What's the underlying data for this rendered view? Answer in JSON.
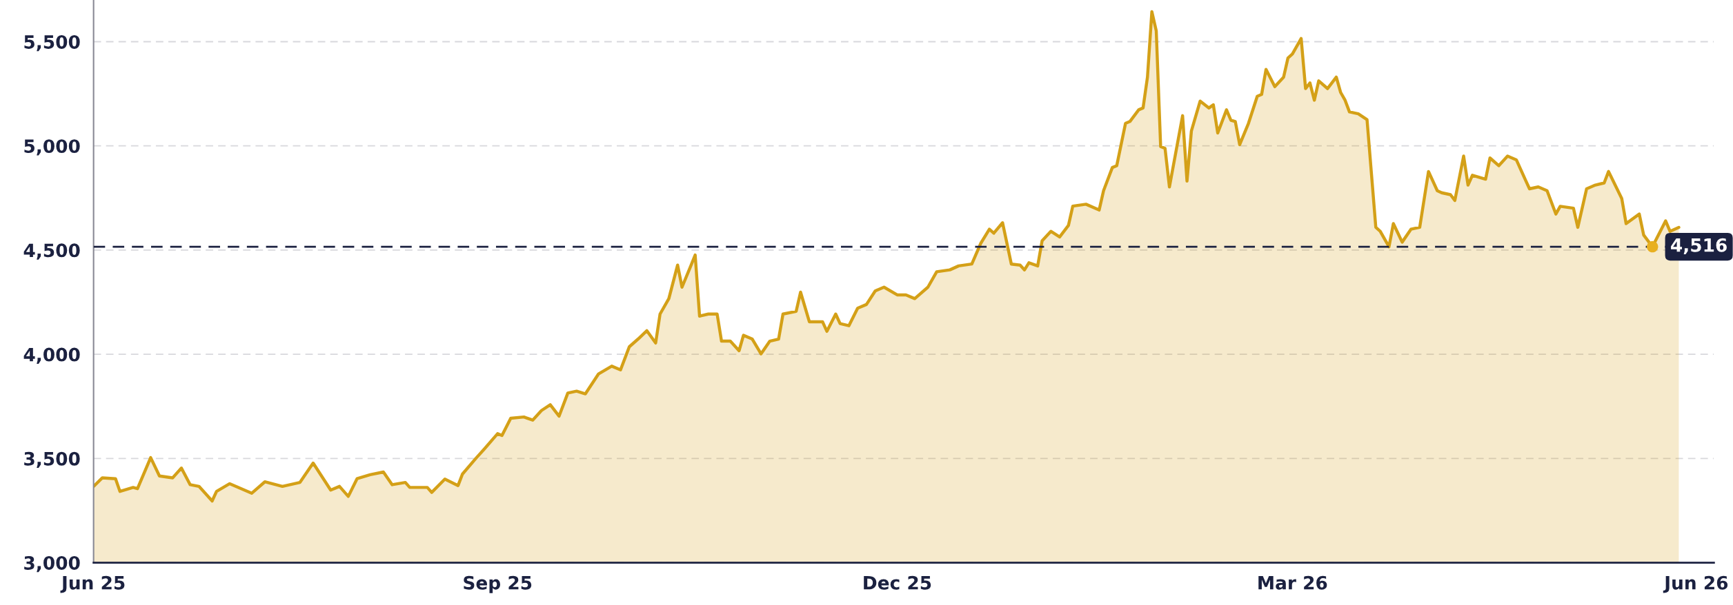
{
  "chart_data": {
    "type": "area",
    "x": [
      "2025-06-01",
      "2025-06-03",
      "2025-06-06",
      "2025-06-07",
      "2025-06-10",
      "2025-06-11",
      "2025-06-14",
      "2025-06-16",
      "2025-06-19",
      "2025-06-21",
      "2025-06-23",
      "2025-06-25",
      "2025-06-28",
      "2025-06-29",
      "2025-07-02",
      "2025-07-07",
      "2025-07-10",
      "2025-07-14",
      "2025-07-18",
      "2025-07-21",
      "2025-07-25",
      "2025-07-27",
      "2025-07-29",
      "2025-07-31",
      "2025-08-03",
      "2025-08-06",
      "2025-08-08",
      "2025-08-11",
      "2025-08-12",
      "2025-08-16",
      "2025-08-17",
      "2025-08-20",
      "2025-08-23",
      "2025-08-24",
      "2025-08-27",
      "2025-08-29",
      "2025-09-01",
      "2025-09-02",
      "2025-09-04",
      "2025-09-07",
      "2025-09-09",
      "2025-09-11",
      "2025-09-13",
      "2025-09-15",
      "2025-09-17",
      "2025-09-19",
      "2025-09-21",
      "2025-09-24",
      "2025-09-27",
      "2025-09-29",
      "2025-10-01",
      "2025-10-03",
      "2025-10-05",
      "2025-10-07",
      "2025-10-08",
      "2025-10-10",
      "2025-10-12",
      "2025-10-13",
      "2025-10-15",
      "2025-10-16",
      "2025-10-17",
      "2025-10-19",
      "2025-10-21",
      "2025-10-22",
      "2025-10-24",
      "2025-10-26",
      "2025-10-27",
      "2025-10-29",
      "2025-10-31",
      "2025-11-02",
      "2025-11-04",
      "2025-11-05",
      "2025-11-08",
      "2025-11-09",
      "2025-11-11",
      "2025-11-14",
      "2025-11-15",
      "2025-11-17",
      "2025-11-18",
      "2025-11-20",
      "2025-11-22",
      "2025-11-24",
      "2025-11-26",
      "2025-11-28",
      "2025-12-01",
      "2025-12-03",
      "2025-12-05",
      "2025-12-08",
      "2025-12-10",
      "2025-12-13",
      "2025-12-15",
      "2025-12-18",
      "2025-12-20",
      "2025-12-22",
      "2025-12-23",
      "2025-12-25",
      "2025-12-27",
      "2025-12-29",
      "2025-12-30",
      "2025-12-31",
      "2026-01-02",
      "2026-01-03",
      "2026-01-05",
      "2026-01-07",
      "2026-01-09",
      "2026-01-10",
      "2026-01-13",
      "2026-01-16",
      "2026-01-17",
      "2026-01-19",
      "2026-01-20",
      "2026-01-22",
      "2026-01-23",
      "2026-01-25",
      "2026-01-26",
      "2026-01-27",
      "2026-01-28",
      "2026-01-29",
      "2026-01-30",
      "2026-01-31",
      "2026-02-01",
      "2026-02-04",
      "2026-02-05",
      "2026-02-06",
      "2026-02-08",
      "2026-02-10",
      "2026-02-11",
      "2026-02-12",
      "2026-02-14",
      "2026-02-15",
      "2026-02-16",
      "2026-02-17",
      "2026-02-19",
      "2026-02-21",
      "2026-02-22",
      "2026-02-23",
      "2026-02-25",
      "2026-02-27",
      "2026-02-28",
      "2026-03-01",
      "2026-03-03",
      "2026-03-04",
      "2026-03-05",
      "2026-03-06",
      "2026-03-07",
      "2026-03-09",
      "2026-03-11",
      "2026-03-12",
      "2026-03-13",
      "2026-03-14",
      "2026-03-16",
      "2026-03-18",
      "2026-03-20",
      "2026-03-21",
      "2026-03-23",
      "2026-03-24",
      "2026-03-26",
      "2026-03-28",
      "2026-03-30",
      "2026-04-01",
      "2026-04-03",
      "2026-04-04",
      "2026-04-06",
      "2026-04-07",
      "2026-04-09",
      "2026-04-10",
      "2026-04-11",
      "2026-04-14",
      "2026-04-15",
      "2026-04-17",
      "2026-04-19",
      "2026-04-21",
      "2026-04-23",
      "2026-04-24",
      "2026-04-26",
      "2026-04-28",
      "2026-04-30",
      "2026-05-01",
      "2026-05-04",
      "2026-05-05",
      "2026-05-07",
      "2026-05-09",
      "2026-05-11",
      "2026-05-12",
      "2026-05-15",
      "2026-05-16",
      "2026-05-19",
      "2026-05-20",
      "2026-05-22",
      "2026-05-25",
      "2026-05-26",
      "2026-05-28"
    ],
    "series": [
      {
        "color": "#d4a017",
        "values": [
          3366,
          3407,
          3403,
          3342,
          3361,
          3355,
          3504,
          3416,
          3407,
          3454,
          3374,
          3366,
          3296,
          3342,
          3379,
          3333,
          3388,
          3366,
          3385,
          3478,
          3348,
          3366,
          3318,
          3403,
          3422,
          3435,
          3374,
          3385,
          3361,
          3361,
          3337,
          3401,
          3370,
          3425,
          3499,
          3546,
          3619,
          3610,
          3693,
          3699,
          3684,
          3730,
          3758,
          3703,
          3814,
          3823,
          3810,
          3906,
          3943,
          3925,
          4036,
          4073,
          4113,
          4054,
          4193,
          4267,
          4428,
          4322,
          4424,
          4476,
          4183,
          4193,
          4193,
          4063,
          4063,
          4017,
          4091,
          4073,
          4002,
          4063,
          4073,
          4193,
          4206,
          4298,
          4156,
          4156,
          4110,
          4193,
          4147,
          4137,
          4221,
          4239,
          4304,
          4322,
          4285,
          4285,
          4267,
          4322,
          4396,
          4405,
          4424,
          4433,
          4531,
          4600,
          4581,
          4631,
          4433,
          4428,
          4405,
          4439,
          4424,
          4544,
          4590,
          4563,
          4618,
          4711,
          4720,
          4692,
          4785,
          4896,
          4905,
          5108,
          5117,
          5173,
          5182,
          5330,
          5644,
          5552,
          4997,
          4988,
          4803,
          5145,
          4831,
          5071,
          5215,
          5182,
          5197,
          5062,
          5173,
          5123,
          5117,
          5006,
          5108,
          5238,
          5247,
          5367,
          5284,
          5330,
          5422,
          5441,
          5515,
          5275,
          5302,
          5219,
          5312,
          5275,
          5330,
          5256,
          5219,
          5163,
          5154,
          5126,
          4609,
          4590,
          4516,
          4627,
          4538,
          4600,
          4609,
          4877,
          4785,
          4775,
          4766,
          4738,
          4951,
          4812,
          4859,
          4840,
          4942,
          4905,
          4951,
          4933,
          4840,
          4794,
          4803,
          4785,
          4673,
          4710,
          4701,
          4609,
          4794,
          4812,
          4822,
          4877,
          4748,
          4627,
          4673,
          4572,
          4516,
          4640,
          4590,
          4609
        ]
      },
      {
        "type": "scatter",
        "color": "#e8b020",
        "x": [
          "2026-05-22"
        ],
        "values": [
          4516
        ]
      }
    ],
    "xlim": [
      "2025-06-01",
      "2026-06-05"
    ],
    "xticks": [
      {
        "value": "2025-06-01",
        "label": "Jun 25"
      },
      {
        "value": "2025-09-01",
        "label": "Sep 25"
      },
      {
        "value": "2025-12-01",
        "label": "Dec 25"
      },
      {
        "value": "2026-03-01",
        "label": "Mar 26"
      },
      {
        "value": "2026-06-01",
        "label": "Jun 26"
      }
    ],
    "ylim": [
      3000,
      5700
    ],
    "yticks": [
      {
        "value": 3000,
        "label": "3,000"
      },
      {
        "value": 3500,
        "label": "3,500"
      },
      {
        "value": 4000,
        "label": "4,000"
      },
      {
        "value": 4500,
        "label": "4,500"
      },
      {
        "value": 5000,
        "label": "5,000"
      },
      {
        "value": 5500,
        "label": "5,500"
      }
    ],
    "grid": "y",
    "ref_lines": [
      {
        "axis": "y",
        "value": 4516,
        "label": "4,516",
        "color": "#1b2140",
        "line_style": "dashed"
      }
    ]
  }
}
